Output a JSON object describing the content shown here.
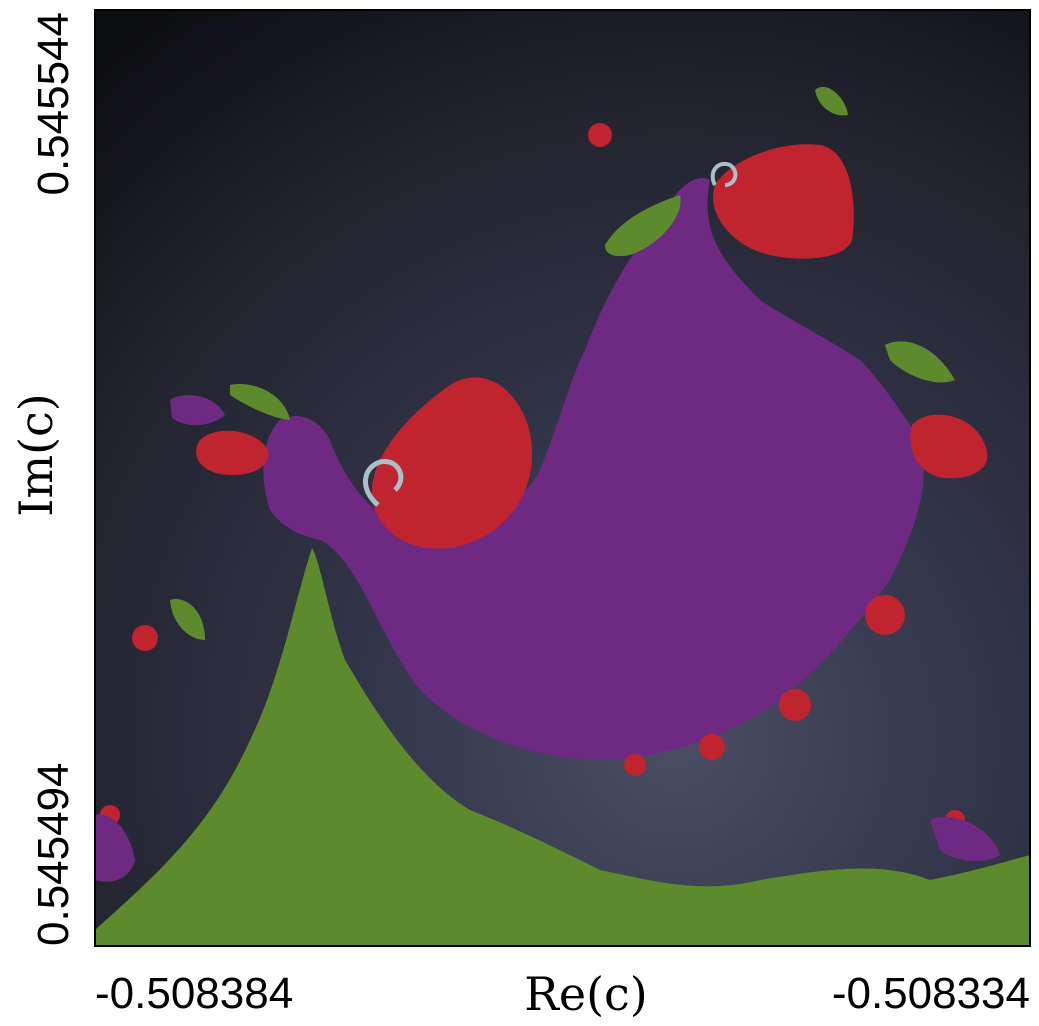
{
  "chart_data": {
    "type": "heatmap",
    "title": "",
    "xlabel": "Re(c)",
    "ylabel": "Im(c)",
    "x_ticks": [
      "-0.508384",
      "-0.508334"
    ],
    "y_ticks": [
      "0.545494",
      "0.545544"
    ],
    "xlim": [
      -0.508384,
      -0.508334
    ],
    "ylim": [
      0.545494,
      0.545544
    ],
    "grid": false,
    "colors": {
      "escape_dark": "#111217",
      "escape_mid": "#2a2c3a",
      "escape_light": "#4a4c62",
      "boundary": "#8a8fa3",
      "purple": "#6e2a83",
      "red": "#c0242f",
      "green": "#5d8a2d",
      "pale": "#a9c0c8"
    },
    "regions": [
      {
        "label": "green",
        "color": "green"
      },
      {
        "label": "purple",
        "color": "purple"
      },
      {
        "label": "red",
        "color": "red"
      }
    ]
  }
}
